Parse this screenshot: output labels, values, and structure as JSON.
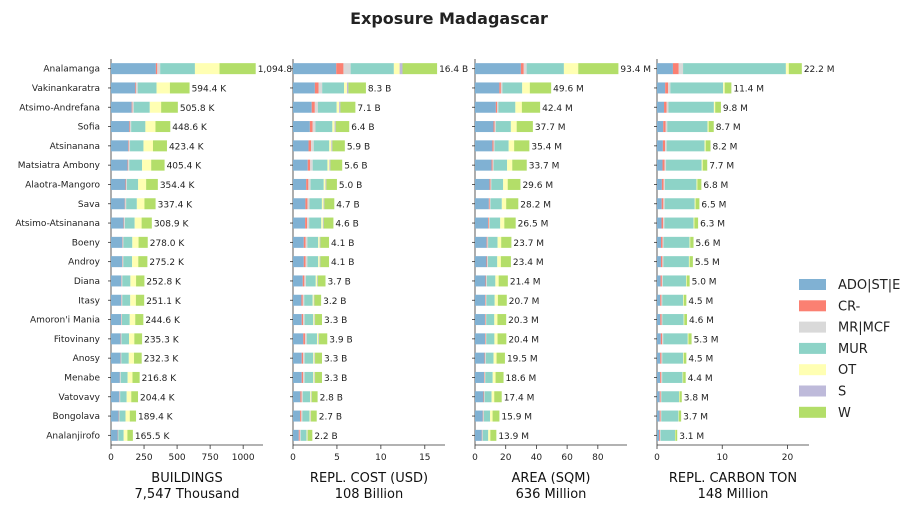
{
  "chart_data": {
    "type": "bar",
    "title": "Exposure Madagascar",
    "categories": [
      "Analamanga",
      "Vakinankaratra",
      "Atsimo-Andrefana",
      "Sofia",
      "Atsinanana",
      "Matsiatra Ambony",
      "Alaotra-Mangoro",
      "Sava",
      "Atsimo-Atsinanana",
      "Boeny",
      "Androy",
      "Diana",
      "Itasy",
      "Amoron'i Mania",
      "Fitovinany",
      "Anosy",
      "Menabe",
      "Vatovavy",
      "Bongolava",
      "Analanjirofo"
    ],
    "legend": {
      "placement": "right",
      "items": [
        {
          "name": "ADO|ST|E",
          "color": "#80b1d3"
        },
        {
          "name": "CR-",
          "color": "#fb8072"
        },
        {
          "name": "MR|MCF",
          "color": "#d9d9d9"
        },
        {
          "name": "MUR",
          "color": "#8dd3c7"
        },
        {
          "name": "OT",
          "color": "#ffffb3"
        },
        {
          "name": "S",
          "color": "#bebada"
        },
        {
          "name": "W",
          "color": "#b3de69"
        }
      ]
    },
    "panels": [
      {
        "xlabel": "BUILDINGS",
        "total_label": "7,547 Thousand",
        "xlim": [
          0,
          1150
        ],
        "ticks": [
          0,
          250,
          500,
          750,
          1000
        ],
        "tick_labels": [
          "0",
          "250",
          "500",
          "750",
          "1000"
        ],
        "totals": [
          1094.8,
          594.4,
          505.8,
          448.6,
          423.4,
          405.4,
          354.4,
          337.4,
          308.9,
          278.0,
          275.2,
          252.8,
          251.1,
          244.6,
          235.3,
          232.3,
          216.8,
          204.4,
          189.4,
          165.5
        ],
        "value_labels": [
          "1,094.8 K",
          "594.4 K",
          "505.8 K",
          "448.6 K",
          "423.4 K",
          "405.4 K",
          "354.4 K",
          "337.4 K",
          "308.9 K",
          "278.0 K",
          "275.2 K",
          "252.8 K",
          "251.1 K",
          "244.6 K",
          "235.3 K",
          "232.3 K",
          "216.8 K",
          "204.4 K",
          "189.4 K",
          "165.5 K"
        ],
        "shares": [
          0.31,
          0.01,
          0.02,
          0.24,
          0.17,
          0.0,
          0.25
        ]
      },
      {
        "xlabel": "REPL. COST (USD)",
        "total_label": "108 Billion",
        "xlim": [
          0,
          17.3
        ],
        "ticks": [
          0,
          5,
          10,
          15
        ],
        "tick_labels": [
          "0",
          "5",
          "10",
          "15"
        ],
        "totals": [
          16.4,
          8.3,
          7.1,
          6.4,
          5.9,
          5.6,
          5.0,
          4.7,
          4.6,
          4.1,
          4.1,
          3.7,
          3.2,
          3.3,
          3.9,
          3.3,
          3.3,
          2.8,
          2.7,
          2.2
        ],
        "value_labels": [
          "16.4 B",
          "8.3 B",
          "7.1 B",
          "6.4 B",
          "5.9 B",
          "5.6 B",
          "5.0 B",
          "4.7 B",
          "4.6 B",
          "4.1 B",
          "4.1 B",
          "3.7 B",
          "3.2 B",
          "3.3 B",
          "3.9 B",
          "3.3 B",
          "3.3 B",
          "2.8 B",
          "2.7 B",
          "2.2 B"
        ],
        "shares": [
          0.3,
          0.05,
          0.05,
          0.3,
          0.04,
          0.02,
          0.24
        ]
      },
      {
        "xlabel": "AREA (SQM)",
        "total_label": "636 Million",
        "xlim": [
          0,
          99
        ],
        "ticks": [
          0,
          20,
          40,
          60,
          80
        ],
        "tick_labels": [
          "0",
          "20",
          "40",
          "60",
          "80"
        ],
        "totals": [
          93.4,
          49.6,
          42.4,
          37.7,
          35.4,
          33.7,
          29.6,
          28.2,
          26.5,
          23.7,
          23.4,
          21.4,
          20.7,
          20.3,
          20.4,
          19.5,
          18.6,
          17.4,
          15.9,
          13.9
        ],
        "value_labels": [
          "93.4 M",
          "49.6 M",
          "42.4 M",
          "37.7 M",
          "35.4 M",
          "33.7 M",
          "29.6 M",
          "28.2 M",
          "26.5 M",
          "23.7 M",
          "23.4 M",
          "21.4 M",
          "20.7 M",
          "20.3 M",
          "20.4 M",
          "19.5 M",
          "18.6 M",
          "17.4 M",
          "15.9 M",
          "13.9 M"
        ],
        "shares": [
          0.32,
          0.02,
          0.02,
          0.26,
          0.1,
          0.0,
          0.28
        ]
      },
      {
        "xlabel": "REPL. CARBON TON",
        "total_label": "148 Million",
        "xlim": [
          0,
          23.3
        ],
        "ticks": [
          0,
          10,
          20
        ],
        "tick_labels": [
          "0",
          "10",
          "20"
        ],
        "totals": [
          22.2,
          11.4,
          9.8,
          8.7,
          8.2,
          7.7,
          6.8,
          6.5,
          6.3,
          5.6,
          5.5,
          5.0,
          4.5,
          4.6,
          5.3,
          4.5,
          4.4,
          3.8,
          3.7,
          3.1
        ],
        "value_labels": [
          "22.2 M",
          "11.4 M",
          "9.8 M",
          "8.7 M",
          "8.2 M",
          "7.7 M",
          "6.8 M",
          "6.5 M",
          "6.3 M",
          "5.6 M",
          "5.5 M",
          "5.0 M",
          "4.5 M",
          "4.6 M",
          "5.3 M",
          "4.5 M",
          "4.4 M",
          "3.8 M",
          "3.7 M",
          "3.1 M"
        ],
        "shares": [
          0.11,
          0.04,
          0.03,
          0.71,
          0.02,
          0.0,
          0.09
        ]
      }
    ],
    "grid": false
  }
}
